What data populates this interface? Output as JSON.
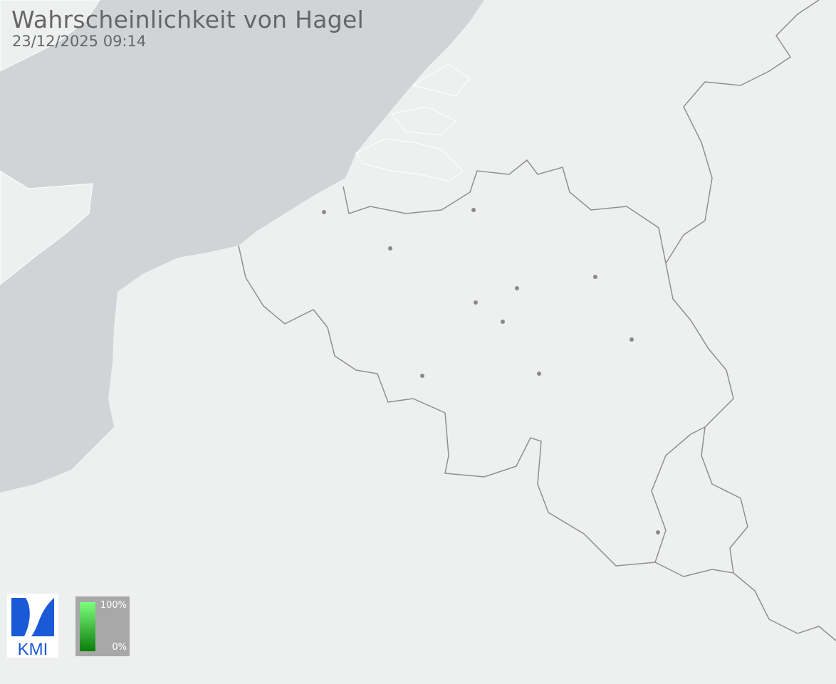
{
  "header": {
    "title": "Wahrscheinlichkeit von Hagel",
    "timestamp": "23/12/2025 09:14"
  },
  "legend": {
    "max_label": "100%",
    "min_label": "0%",
    "color_max": "#7dff7d",
    "color_min": "#0b7d0b",
    "background": "#a8a8a8"
  },
  "logo": {
    "text": "KMI",
    "color": "#1a5ad6"
  },
  "colors": {
    "sea": "#d1d4d6",
    "land": "#eef0ef",
    "border": "#8f8f8f",
    "city": "#8a8a8a"
  }
}
